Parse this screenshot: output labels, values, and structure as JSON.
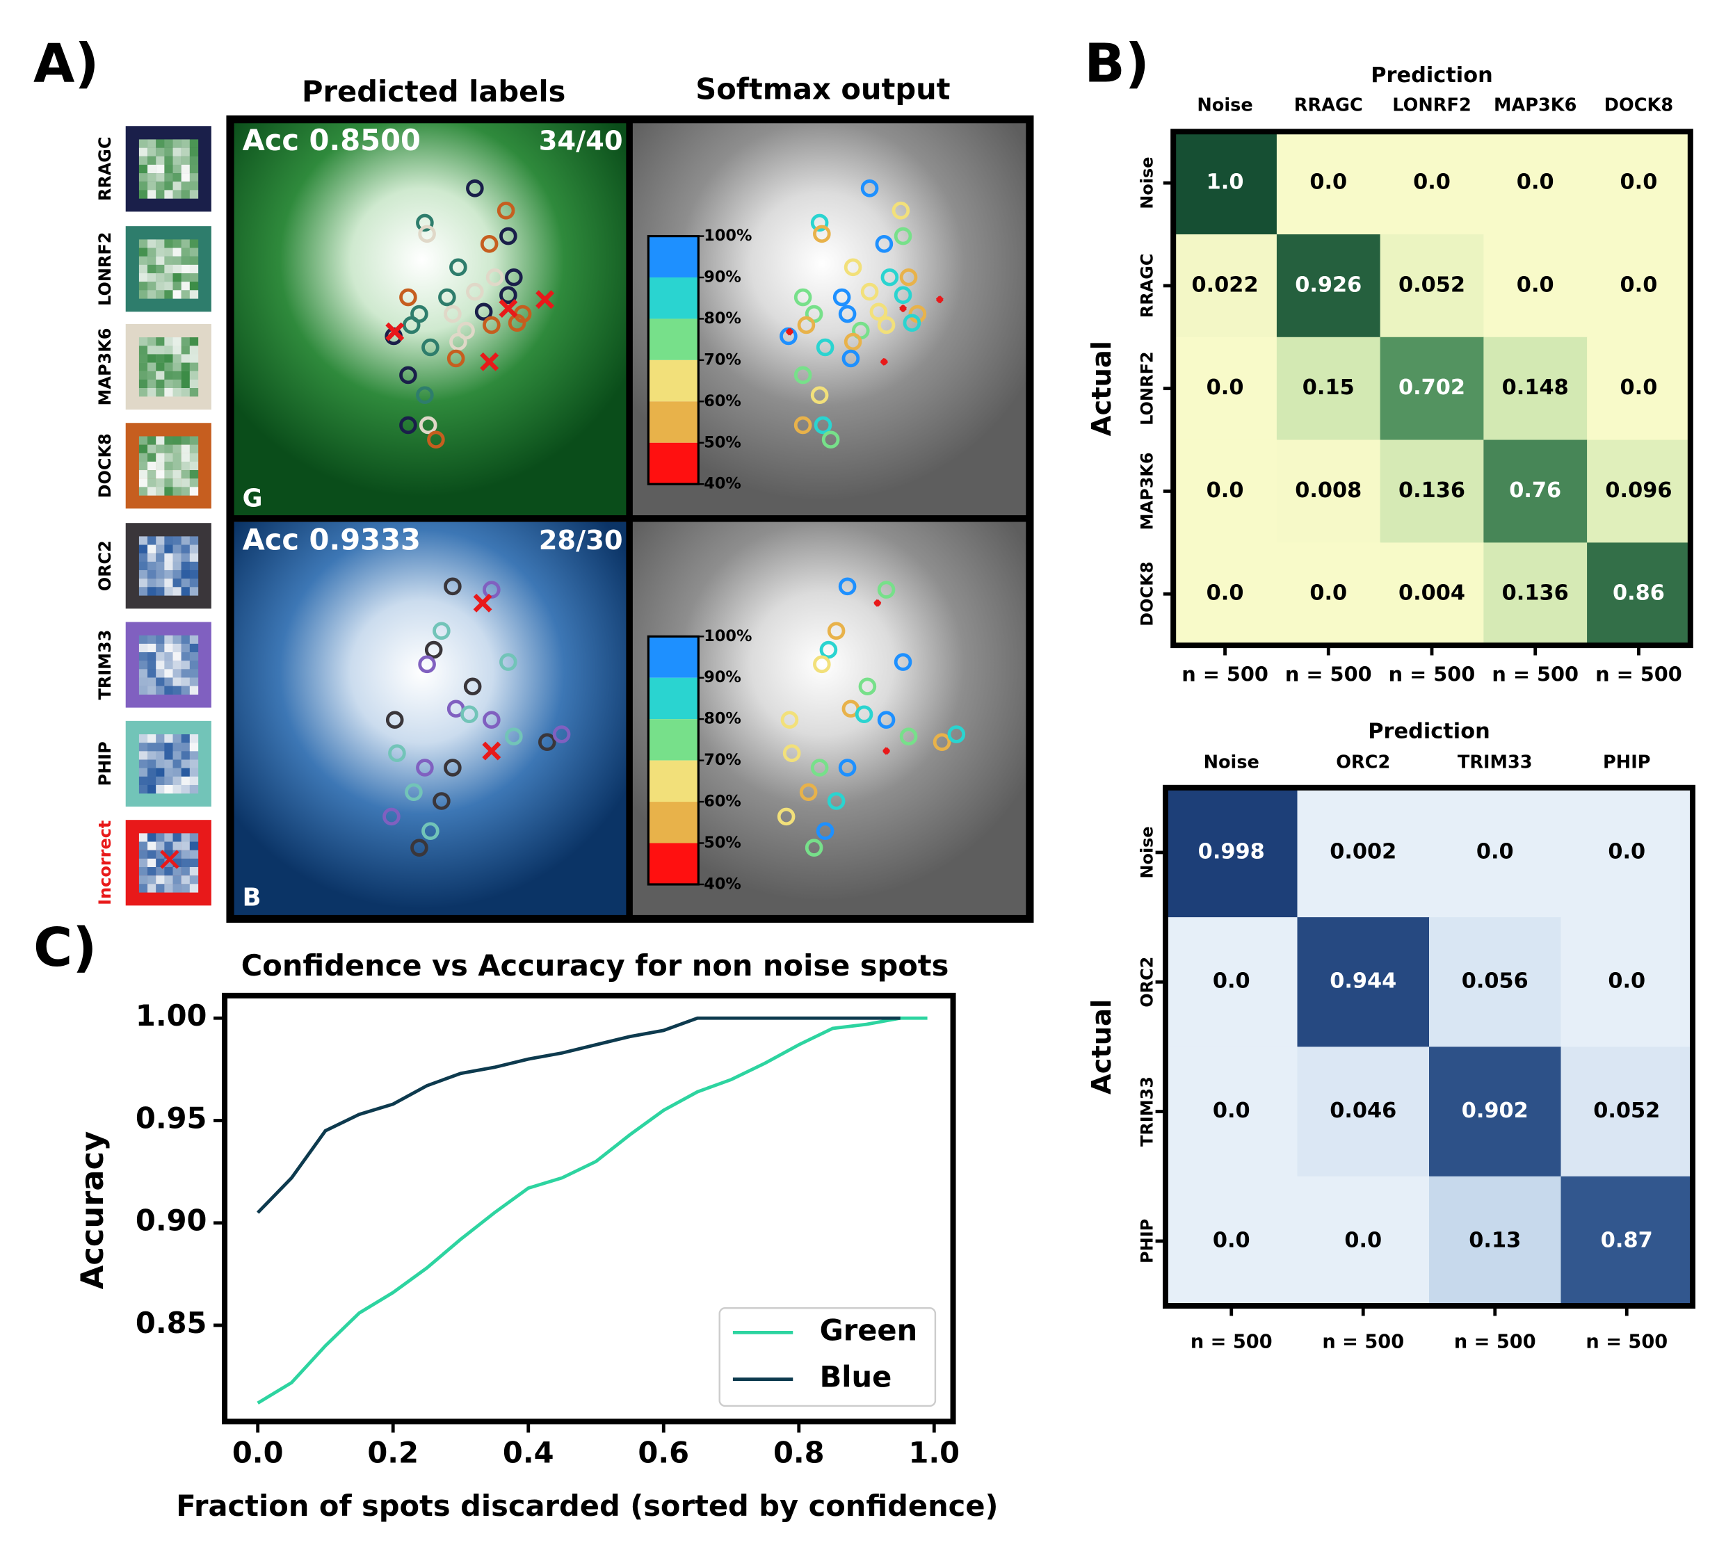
{
  "panels": {
    "a": {
      "label": "A)",
      "titles": [
        "Predicted labels",
        "Softmax output"
      ],
      "classes": [
        "RRAGC",
        "LONRF2",
        "MAP3K6",
        "DOCK8",
        "ORC2",
        "TRIM33",
        "PHIP",
        "Incorrect"
      ],
      "class_colors": [
        "#1a1f4a",
        "#2e7d6c",
        "#e0d8c8",
        "#c65e1f",
        "#3a363a",
        "#8060c0",
        "#72c4b8",
        "#e8191a"
      ],
      "images": [
        {
          "accuracy": "Acc 0.8500",
          "count": "34/40",
          "channel": "G"
        },
        {
          "accuracy": "Acc 0.9333",
          "count": "28/30",
          "channel": "B"
        }
      ],
      "colorbar": {
        "colors": [
          "#1e90ff",
          "#2ad4d0",
          "#77e08a",
          "#f2e07a",
          "#e8b24a",
          "#ff1010"
        ],
        "ticks": [
          {
            "value": 100,
            "label": "100%"
          },
          {
            "value": 90,
            "label": "90%"
          },
          {
            "value": 80,
            "label": "80%"
          },
          {
            "value": 70,
            "label": "70%"
          },
          {
            "value": 60,
            "label": "60%"
          },
          {
            "value": 50,
            "label": "50%"
          },
          {
            "value": 40,
            "label": "40%"
          }
        ]
      }
    },
    "b": {
      "label": "B)"
    },
    "c": {
      "label": "C)"
    }
  },
  "chart_data": [
    {
      "type": "line",
      "title": "Confidence vs Accuracy for non noise spots",
      "xlabel": "Fraction of spots discarded (sorted by confidence)",
      "ylabel": "Accuracy",
      "x": [
        0,
        0.05,
        0.1,
        0.15,
        0.2,
        0.25,
        0.3,
        0.35,
        0.4,
        0.45,
        0.5,
        0.55,
        0.6,
        0.65,
        0.7,
        0.75,
        0.8,
        0.85,
        0.9,
        0.95,
        0.99
      ],
      "series": [
        {
          "name": "Green",
          "color": "#2dd4a0",
          "values": [
            0.812,
            0.822,
            0.84,
            0.856,
            0.866,
            0.878,
            0.892,
            0.905,
            0.917,
            0.922,
            0.93,
            0.943,
            0.955,
            0.964,
            0.97,
            0.978,
            0.987,
            0.995,
            0.997,
            1.0,
            1.0
          ]
        },
        {
          "name": "Blue",
          "color": "#0d3a4e",
          "values": [
            0.905,
            0.922,
            0.945,
            0.953,
            0.958,
            0.967,
            0.973,
            0.976,
            0.98,
            0.983,
            0.987,
            0.991,
            0.994,
            1.0,
            1.0,
            1.0,
            1.0,
            1.0,
            1.0,
            1.0,
            null
          ]
        }
      ],
      "xlim": [
        -0.049,
        1.028
      ],
      "ylim": [
        0.803,
        1.011
      ],
      "xticks": [
        {
          "value": 0,
          "label": "0.0"
        },
        0.2,
        0.4,
        0.6,
        0.8,
        {
          "value": 1,
          "label": "1.0"
        }
      ],
      "yticks": [
        0.85,
        {
          "value": 0.9,
          "label": "0.90"
        },
        0.95,
        {
          "value": 1,
          "label": "1.00"
        }
      ],
      "legend": "lower right"
    },
    {
      "type": "heatmap",
      "xlabel": "Prediction",
      "ylabel": "Actual",
      "categories": [
        "Noise",
        "RRAGC",
        "LONRF2",
        "MAP3K6",
        "DOCK8"
      ],
      "values": [
        [
          1.0,
          0,
          0,
          0,
          0
        ],
        [
          0.022,
          0.926,
          0.052,
          0,
          0
        ],
        [
          0,
          0.15,
          0.702,
          0.148,
          0
        ],
        [
          0,
          0.008,
          0.136,
          0.76,
          0.096
        ],
        [
          0,
          0,
          0.004,
          0.136,
          0.86
        ]
      ],
      "value_labels": [
        [
          "1.0",
          "0.0",
          "0.0",
          "0.0",
          "0.0"
        ],
        [
          "0.022",
          "0.926",
          "0.052",
          "0.0",
          "0.0"
        ],
        [
          "0.0",
          "0.15",
          "0.702",
          "0.148",
          "0.0"
        ],
        [
          "0.0",
          "0.008",
          "0.136",
          "0.76",
          "0.096"
        ],
        [
          "0.0",
          "0.0",
          "0.004",
          "0.136",
          "0.86"
        ]
      ],
      "column_labels": [
        "n = 500",
        "n = 500",
        "n = 500",
        "n = 500",
        "n = 500"
      ],
      "colormap": [
        "#f8fac9",
        "#7cc17e",
        "#164f33"
      ]
    },
    {
      "type": "heatmap",
      "xlabel": "Prediction",
      "ylabel": "Actual",
      "categories": [
        "Noise",
        "ORC2",
        "TRIM33",
        "PHIP"
      ],
      "values": [
        [
          0.998,
          0.002,
          0,
          0
        ],
        [
          0,
          0.944,
          0.056,
          0
        ],
        [
          0,
          0.046,
          0.902,
          0.052
        ],
        [
          0,
          0,
          0.13,
          0.87
        ]
      ],
      "value_labels": [
        [
          "0.998",
          "0.002",
          "0.0",
          "0.0"
        ],
        [
          "0.0",
          "0.944",
          "0.056",
          "0.0"
        ],
        [
          "0.0",
          "0.046",
          "0.902",
          "0.052"
        ],
        [
          "0.0",
          "0.0",
          "0.13",
          "0.87"
        ]
      ],
      "column_labels": [
        "n = 500",
        "n = 500",
        "n = 500",
        "n = 500"
      ],
      "colormap": [
        "#e6eff8",
        "#6f9ccb",
        "#1d3f78"
      ]
    }
  ]
}
